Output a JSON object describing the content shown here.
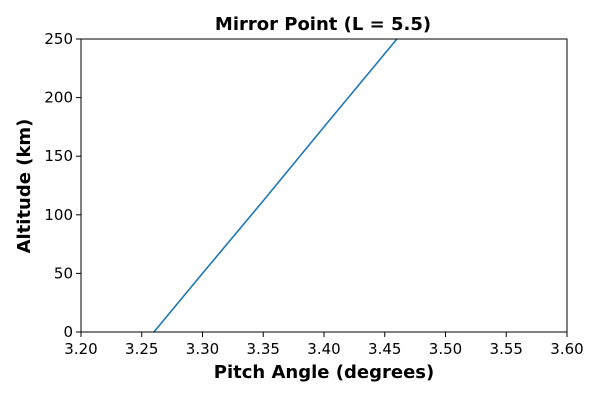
{
  "chart_data": {
    "type": "line",
    "title": "Mirror Point (L = 5.5)",
    "xlabel": "Pitch Angle (degrees)",
    "ylabel": "Altitude (km)",
    "xlim": [
      3.2,
      3.6
    ],
    "ylim": [
      0,
      250
    ],
    "xticks": [
      "3.20",
      "3.25",
      "3.30",
      "3.35",
      "3.40",
      "3.45",
      "3.50",
      "3.55",
      "3.60"
    ],
    "yticks": [
      "0",
      "50",
      "100",
      "150",
      "200",
      "250"
    ],
    "grid": false,
    "series": [
      {
        "color": "#1f77b4",
        "x": [
          3.26,
          3.3,
          3.35,
          3.4,
          3.46
        ],
        "y": [
          0,
          50,
          112,
          175,
          250
        ]
      }
    ]
  }
}
